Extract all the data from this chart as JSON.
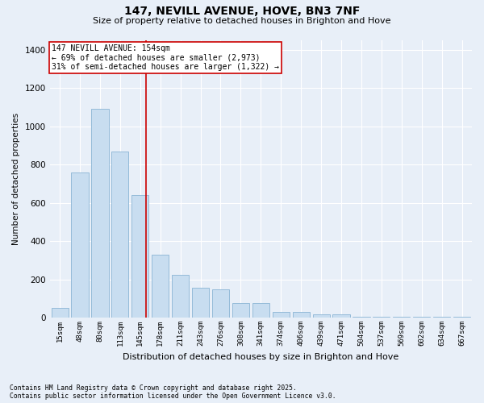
{
  "title": "147, NEVILL AVENUE, HOVE, BN3 7NF",
  "subtitle": "Size of property relative to detached houses in Brighton and Hove",
  "xlabel": "Distribution of detached houses by size in Brighton and Hove",
  "ylabel": "Number of detached properties",
  "bar_color": "#c8ddf0",
  "bar_edge_color": "#8ab4d4",
  "background_color": "#e8eff8",
  "grid_color": "#ffffff",
  "annotation_line_color": "#cc0000",
  "annotation_text": "147 NEVILL AVENUE: 154sqm\n← 69% of detached houses are smaller (2,973)\n31% of semi-detached houses are larger (1,322) →",
  "annotation_box_color": "#ffffff",
  "annotation_box_edge_color": "#cc0000",
  "property_size_idx": 4.27,
  "footer": "Contains HM Land Registry data © Crown copyright and database right 2025.\nContains public sector information licensed under the Open Government Licence v3.0.",
  "categories": [
    "15sqm",
    "48sqm",
    "80sqm",
    "113sqm",
    "145sqm",
    "178sqm",
    "211sqm",
    "243sqm",
    "276sqm",
    "308sqm",
    "341sqm",
    "374sqm",
    "406sqm",
    "439sqm",
    "471sqm",
    "504sqm",
    "537sqm",
    "569sqm",
    "602sqm",
    "634sqm",
    "667sqm"
  ],
  "values": [
    50,
    760,
    1090,
    870,
    640,
    330,
    225,
    155,
    150,
    75,
    75,
    30,
    30,
    18,
    18,
    6,
    6,
    4,
    4,
    4,
    4
  ],
  "ylim": [
    0,
    1450
  ],
  "yticks": [
    0,
    200,
    400,
    600,
    800,
    1000,
    1200,
    1400
  ]
}
